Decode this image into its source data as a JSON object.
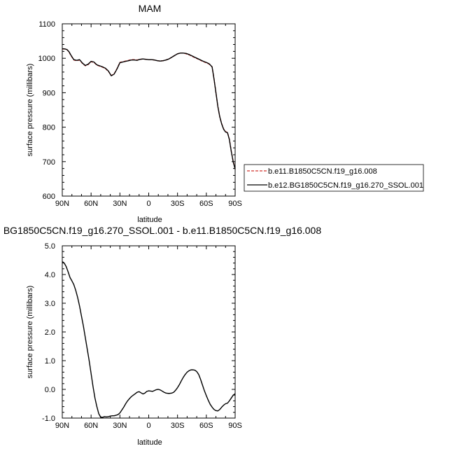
{
  "chart_data": [
    {
      "type": "line",
      "title": "MAM",
      "xlabel": "latitude",
      "ylabel": "surface pressure (millibars)",
      "xticks": [
        "90N",
        "60N",
        "30N",
        "0",
        "30S",
        "60S",
        "90S"
      ],
      "xtick_values": [
        90,
        60,
        30,
        0,
        -30,
        -60,
        -90
      ],
      "yticks": [
        "600",
        "700",
        "800",
        "900",
        "1000",
        "1100"
      ],
      "ytick_values": [
        600,
        700,
        800,
        900,
        1000,
        1100
      ],
      "xlim": [
        90,
        -90
      ],
      "ylim": [
        600,
        1100
      ],
      "legend": "right",
      "series": [
        {
          "name": "b.e11.B1850C5CN.f19_g16.008",
          "color": "#d0302c",
          "dash": "dashed",
          "x": [
            90,
            87,
            85,
            83,
            81,
            78,
            75,
            72,
            69,
            66,
            63,
            60,
            57,
            54,
            51,
            48,
            45,
            42,
            39,
            36,
            33,
            30,
            27,
            24,
            21,
            18,
            15,
            12,
            9,
            6,
            3,
            0,
            -3,
            -6,
            -9,
            -12,
            -15,
            -18,
            -21,
            -24,
            -27,
            -30,
            -33,
            -36,
            -39,
            -42,
            -45,
            -48,
            -51,
            -54,
            -57,
            -60,
            -63,
            -66,
            -68,
            -70,
            -72,
            -74,
            -76,
            -78,
            -80,
            -82,
            -84,
            -86,
            -88,
            -90
          ],
          "y": [
            1027,
            1027,
            1025,
            1018,
            1008,
            995,
            993,
            995,
            985,
            978,
            982,
            990,
            988,
            980,
            977,
            974,
            970,
            962,
            950,
            955,
            970,
            988,
            990,
            992,
            994,
            996,
            996,
            995,
            997,
            998,
            997,
            996,
            996,
            995,
            993,
            992,
            993,
            995,
            998,
            1003,
            1008,
            1013,
            1015,
            1015,
            1013,
            1010,
            1006,
            1002,
            998,
            994,
            990,
            987,
            983,
            975,
            940,
            900,
            860,
            830,
            810,
            795,
            787,
            785,
            765,
            730,
            700,
            680
          ]
        },
        {
          "name": "b.e12.BG1850C5CN.f19_g16.270_SSOL.001",
          "color": "#000000",
          "dash": "solid",
          "x": [
            90,
            87,
            85,
            83,
            81,
            78,
            75,
            72,
            69,
            66,
            63,
            60,
            57,
            54,
            51,
            48,
            45,
            42,
            39,
            36,
            33,
            30,
            27,
            24,
            21,
            18,
            15,
            12,
            9,
            6,
            3,
            0,
            -3,
            -6,
            -9,
            -12,
            -15,
            -18,
            -21,
            -24,
            -27,
            -30,
            -33,
            -36,
            -39,
            -42,
            -45,
            -48,
            -51,
            -54,
            -57,
            -60,
            -63,
            -66,
            -68,
            -70,
            -72,
            -74,
            -76,
            -78,
            -80,
            -82,
            -84,
            -86,
            -88,
            -90
          ],
          "y": [
            1028,
            1027,
            1025,
            1019,
            1009,
            996,
            994,
            996,
            986,
            979,
            983,
            991,
            989,
            981,
            978,
            975,
            971,
            963,
            949,
            954,
            969,
            987,
            989,
            991,
            993,
            995,
            995,
            994,
            997,
            998,
            997,
            996,
            996,
            995,
            993,
            992,
            993,
            995,
            998,
            1003,
            1008,
            1013,
            1015,
            1015,
            1014,
            1011,
            1007,
            1003,
            999,
            995,
            991,
            988,
            984,
            975,
            940,
            900,
            860,
            830,
            809,
            794,
            786,
            784,
            764,
            729,
            699,
            678
          ]
        }
      ]
    },
    {
      "type": "line",
      "title": "BG1850C5CN.f19_g16.270_SSOL.001 - b.e11.B1850C5CN.f19_g16.008",
      "xlabel": "latitude",
      "ylabel": "surface pressure (millibars)",
      "xticks": [
        "90N",
        "60N",
        "30N",
        "0",
        "30S",
        "60S",
        "90S"
      ],
      "xtick_values": [
        90,
        60,
        30,
        0,
        -30,
        -60,
        -90
      ],
      "yticks": [
        "-1.0",
        "0.0",
        "1.0",
        "2.0",
        "3.0",
        "4.0",
        "5.0"
      ],
      "ytick_values": [
        -1,
        0,
        1,
        2,
        3,
        4,
        5
      ],
      "xlim": [
        90,
        -90
      ],
      "ylim": [
        -1,
        5
      ],
      "series": [
        {
          "color": "#000000",
          "dash": "solid",
          "x": [
            90,
            88,
            86,
            84,
            82,
            80,
            78,
            76,
            74,
            72,
            70,
            68,
            66,
            64,
            62,
            60,
            58,
            56,
            54,
            52,
            50,
            48,
            46,
            44,
            42,
            40,
            38,
            36,
            34,
            32,
            30,
            28,
            26,
            24,
            22,
            20,
            18,
            16,
            14,
            12,
            10,
            8,
            6,
            4,
            2,
            0,
            -2,
            -4,
            -6,
            -8,
            -10,
            -12,
            -14,
            -16,
            -18,
            -20,
            -22,
            -24,
            -26,
            -28,
            -30,
            -32,
            -34,
            -36,
            -38,
            -40,
            -42,
            -44,
            -46,
            -48,
            -50,
            -52,
            -54,
            -56,
            -58,
            -60,
            -62,
            -64,
            -66,
            -68,
            -70,
            -72,
            -74,
            -76,
            -78,
            -80,
            -82,
            -84,
            -86,
            -88,
            -90
          ],
          "y": [
            4.45,
            4.4,
            4.28,
            4.1,
            3.9,
            3.78,
            3.65,
            3.45,
            3.2,
            2.9,
            2.55,
            2.2,
            1.8,
            1.4,
            1.0,
            0.55,
            0.1,
            -0.3,
            -0.6,
            -0.85,
            -0.97,
            -0.97,
            -0.95,
            -0.96,
            -0.95,
            -0.93,
            -0.92,
            -0.92,
            -0.9,
            -0.88,
            -0.82,
            -0.72,
            -0.62,
            -0.5,
            -0.4,
            -0.32,
            -0.25,
            -0.2,
            -0.15,
            -0.1,
            -0.08,
            -0.12,
            -0.16,
            -0.13,
            -0.07,
            -0.05,
            -0.06,
            -0.07,
            -0.04,
            -0.01,
            0.0,
            -0.02,
            -0.06,
            -0.1,
            -0.13,
            -0.14,
            -0.14,
            -0.13,
            -0.1,
            -0.03,
            0.06,
            0.17,
            0.3,
            0.42,
            0.52,
            0.6,
            0.65,
            0.68,
            0.68,
            0.67,
            0.62,
            0.52,
            0.35,
            0.15,
            -0.05,
            -0.22,
            -0.38,
            -0.52,
            -0.62,
            -0.7,
            -0.74,
            -0.75,
            -0.7,
            -0.62,
            -0.55,
            -0.5,
            -0.48,
            -0.4,
            -0.3,
            -0.2,
            -0.15
          ]
        }
      ]
    }
  ]
}
